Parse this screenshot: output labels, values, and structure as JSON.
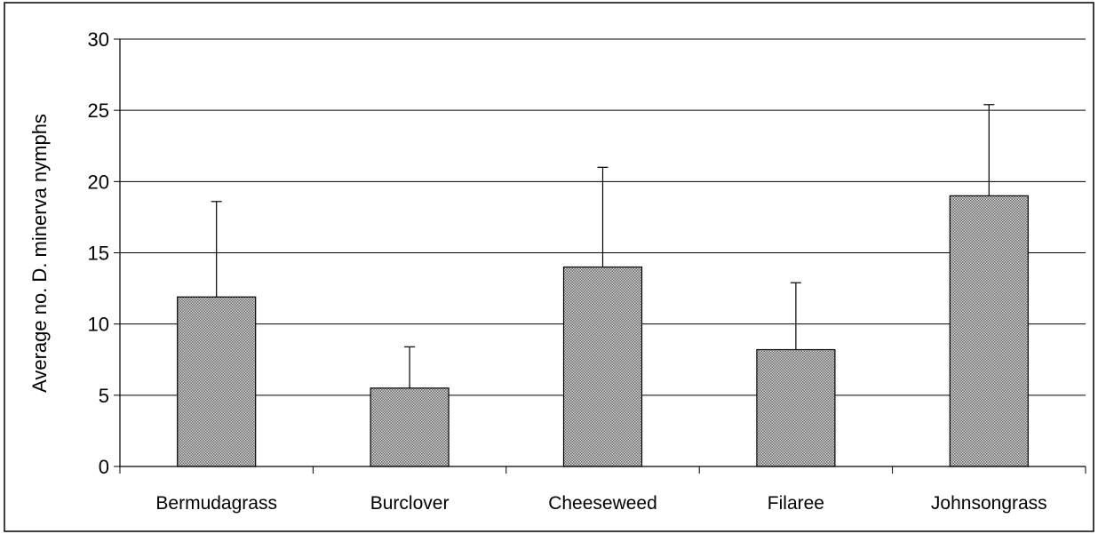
{
  "chart_data": {
    "type": "bar",
    "title": "",
    "xlabel": "",
    "ylabel": "Average no. D. minerva nymphs",
    "categories": [
      "Bermudagrass",
      "Burclover",
      "Cheeseweed",
      "Filaree",
      "Johnsongrass"
    ],
    "values": [
      11.9,
      5.5,
      14.0,
      8.2,
      19.0
    ],
    "error_upper": [
      18.6,
      8.4,
      21.0,
      12.9,
      25.4
    ],
    "ylim": [
      0,
      30
    ],
    "yticks": [
      0,
      5,
      10,
      15,
      20,
      25,
      30
    ],
    "grid": true,
    "legend": "none",
    "bar_fill": "#9a9a9a",
    "bar_stroke": "#000000"
  }
}
